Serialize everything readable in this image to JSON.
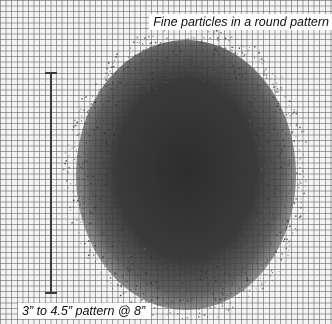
{
  "captions": {
    "top": "Fine particles in a round pattern",
    "bottom": "3” to 4.5” pattern @ 8”"
  },
  "colors": {
    "grid_line": "#5a5a5a",
    "background": "#f4f4f4",
    "spray": "#2d2d2d",
    "caption_box": "#ffffff",
    "caption_text": "#111111"
  }
}
